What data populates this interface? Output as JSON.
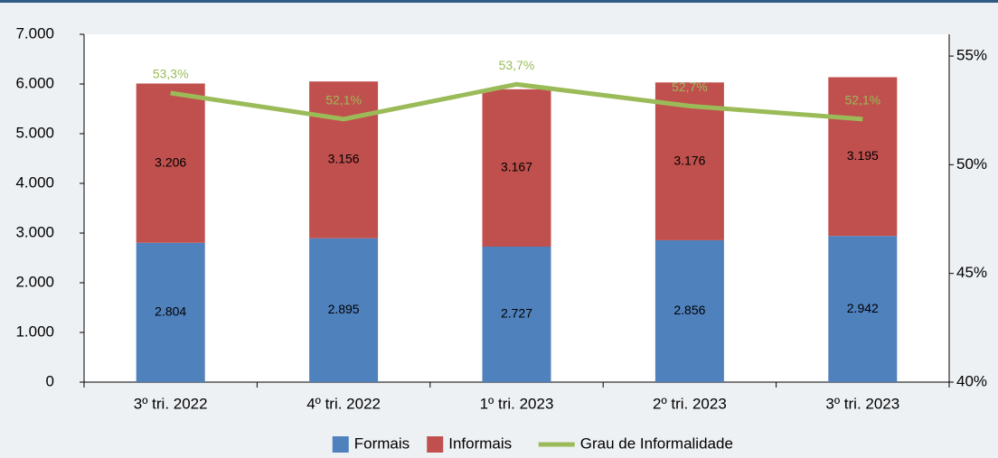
{
  "chart_data": {
    "type": "bar",
    "categories": [
      "3º tri. 2022",
      "4º tri. 2022",
      "1º tri. 2023",
      "2º tri. 2023",
      "3º tri. 2023"
    ],
    "series": [
      {
        "name": "Formais",
        "color": "#4f81bd",
        "type": "bar",
        "values": [
          2804,
          2895,
          2727,
          2856,
          2942
        ],
        "value_labels": [
          "2.804",
          "2.895",
          "2.727",
          "2.856",
          "2.942"
        ]
      },
      {
        "name": "Informais",
        "color": "#c0504d",
        "type": "bar",
        "values": [
          3206,
          3156,
          3167,
          3176,
          3195
        ],
        "value_labels": [
          "3.206",
          "3.156",
          "3.167",
          "3.176",
          "3.195"
        ]
      },
      {
        "name": "Grau de Informalidade",
        "color": "#9bbb59",
        "type": "line",
        "axis": "y2",
        "values": [
          53.3,
          52.1,
          53.7,
          52.7,
          52.1
        ],
        "value_labels": [
          "53,3%",
          "52,1%",
          "53,7%",
          "52,7%",
          "52,1%"
        ]
      }
    ],
    "stacked": true,
    "ylim": [
      0,
      7000
    ],
    "yticks": [
      0,
      {
        "value": 1000,
        "label": "1.000"
      },
      {
        "value": 2000,
        "label": "2.000"
      },
      {
        "value": 3000,
        "label": "3.000"
      },
      {
        "value": 4000,
        "label": "4.000"
      },
      {
        "value": 5000,
        "label": "5.000"
      },
      {
        "value": 6000,
        "label": "6.000"
      },
      {
        "value": 7000,
        "label": "7.000"
      }
    ],
    "y2lim": [
      40,
      56
    ],
    "y2ticks": [
      {
        "value": 40,
        "label": "40%"
      },
      {
        "value": 45,
        "label": "45%"
      },
      {
        "value": 50,
        "label": "50%"
      },
      {
        "value": 55,
        "label": "55%"
      }
    ],
    "legend": "bottom"
  }
}
